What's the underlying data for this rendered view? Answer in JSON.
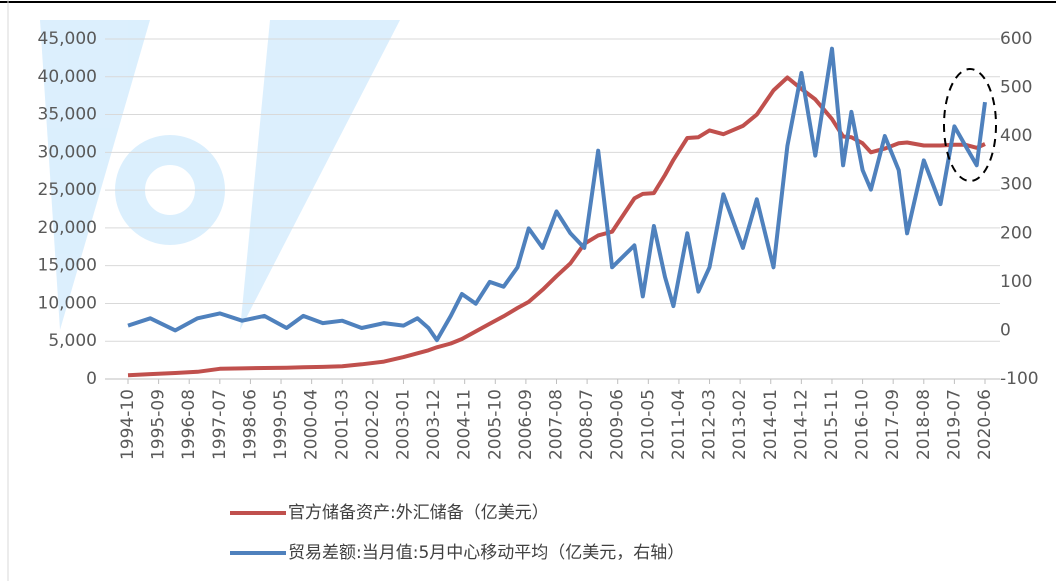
{
  "chart_data": {
    "type": "line",
    "x": [
      "1994-10",
      "1995-06",
      "1996-03",
      "1996-11",
      "1997-07",
      "1998-03",
      "1998-11",
      "1999-07",
      "2000-01",
      "2000-08",
      "2001-03",
      "2001-10",
      "2002-06",
      "2003-01",
      "2003-06",
      "2003-10",
      "2004-01",
      "2004-06",
      "2004-10",
      "2005-03",
      "2005-08",
      "2006-01",
      "2006-06",
      "2006-10",
      "2007-03",
      "2007-08",
      "2008-01",
      "2008-06",
      "2008-11",
      "2009-04",
      "2009-12",
      "2010-03",
      "2010-07",
      "2010-11",
      "2011-02",
      "2011-07",
      "2011-11",
      "2012-03",
      "2012-08",
      "2013-03",
      "2013-08",
      "2014-02",
      "2014-07",
      "2014-12",
      "2015-05",
      "2015-11",
      "2016-03",
      "2016-06",
      "2016-10",
      "2017-01",
      "2017-06",
      "2017-11",
      "2018-02",
      "2018-08",
      "2019-02",
      "2019-07",
      "2019-11",
      "2020-03",
      "2020-06"
    ],
    "series": [
      {
        "name": "官方储备资产:外汇储备（亿美元）",
        "color": "#c0504d",
        "values": [
          500,
          650,
          800,
          950,
          1350,
          1400,
          1450,
          1500,
          1550,
          1600,
          1700,
          1950,
          2300,
          2900,
          3400,
          3800,
          4200,
          4700,
          5300,
          6300,
          7300,
          8300,
          9400,
          10200,
          11800,
          13600,
          15300,
          17900,
          19000,
          19500,
          23900,
          24500,
          24600,
          27000,
          29000,
          31900,
          32000,
          32900,
          32400,
          33500,
          35000,
          38200,
          39900,
          38400,
          37000,
          34400,
          32100,
          32000,
          31200,
          30000,
          30500,
          31200,
          31300,
          30900,
          30900,
          31000,
          31000,
          30600,
          31100
        ]
      },
      {
        "name": "贸易差额:当月值:5月中心移动平均（亿美元，右轴）",
        "color": "#4f81bd",
        "axis": "y2",
        "values": [
          10,
          25,
          0,
          25,
          35,
          20,
          30,
          5,
          30,
          15,
          20,
          5,
          15,
          10,
          25,
          5,
          -20,
          30,
          75,
          55,
          100,
          90,
          130,
          210,
          170,
          245,
          200,
          170,
          370,
          130,
          175,
          70,
          215,
          110,
          50,
          200,
          80,
          130,
          280,
          170,
          270,
          130,
          380,
          530,
          360,
          580,
          340,
          450,
          330,
          290,
          400,
          330,
          200,
          350,
          260,
          420,
          380,
          340,
          470
        ]
      }
    ],
    "xticks": [
      "1994-10",
      "1995-09",
      "1996-08",
      "1997-07",
      "1998-06",
      "1999-05",
      "2000-04",
      "2001-03",
      "2002-02",
      "2003-01",
      "2003-12",
      "2004-11",
      "2005-10",
      "2006-09",
      "2007-08",
      "2008-07",
      "2009-06",
      "2010-05",
      "2011-04",
      "2012-03",
      "2013-02",
      "2014-01",
      "2014-12",
      "2015-11",
      "2016-10",
      "2017-09",
      "2018-08",
      "2019-07",
      "2020-06"
    ],
    "ylim": [
      0,
      45000
    ],
    "yticks": [
      0,
      {
        "value": 5000,
        "label": "5,000"
      },
      {
        "value": 10000,
        "label": "10,000"
      },
      {
        "value": 15000,
        "label": "15,000"
      },
      {
        "value": 20000,
        "label": "20,000"
      },
      {
        "value": 25000,
        "label": "25,000"
      },
      {
        "value": 30000,
        "label": "30,000"
      },
      {
        "value": 35000,
        "label": "35,000"
      },
      {
        "value": 40000,
        "label": "40,000"
      },
      {
        "value": 45000,
        "label": "45,000"
      }
    ],
    "y2lim": [
      -100,
      600
    ],
    "y2ticks": [
      -100,
      0,
      100,
      200,
      300,
      400,
      500,
      600
    ],
    "grid": true
  }
}
